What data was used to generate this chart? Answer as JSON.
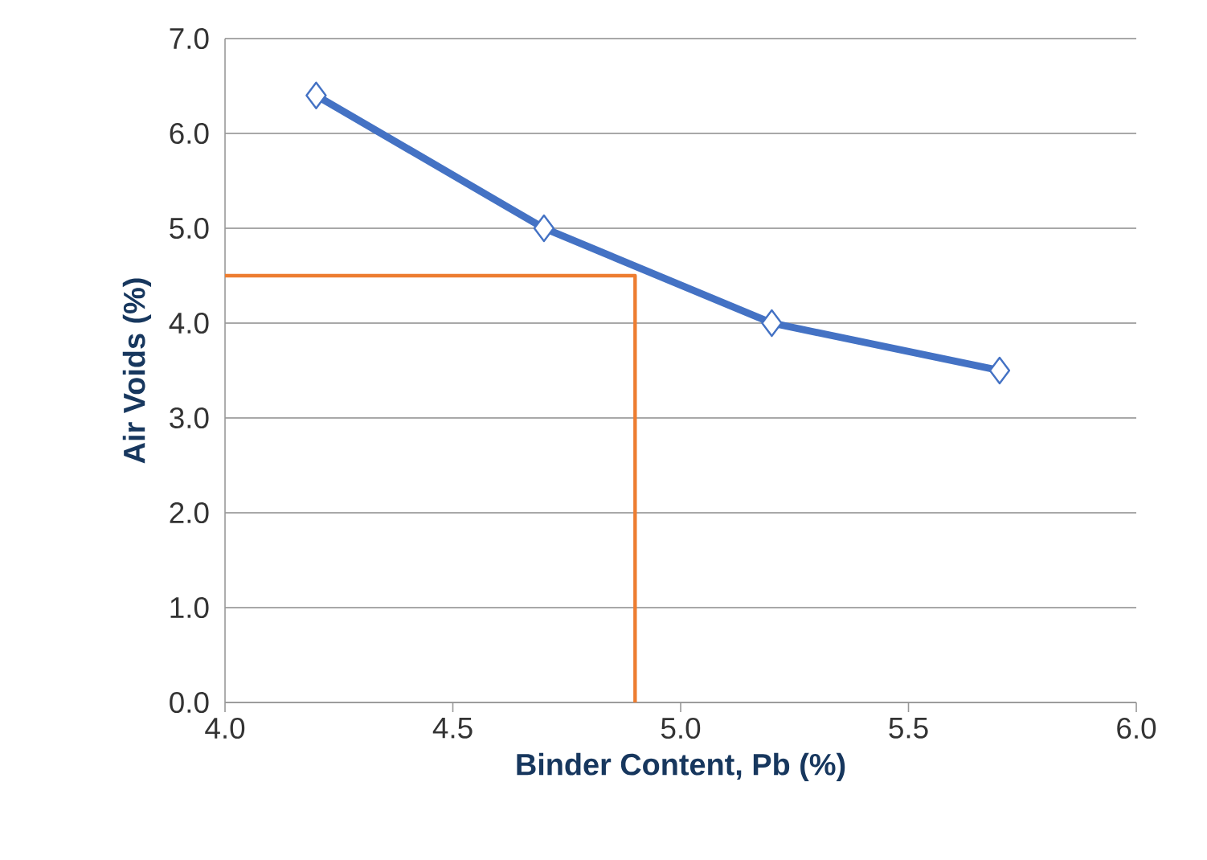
{
  "chart_data": {
    "type": "line",
    "xlabel": "Binder Content, Pb (%)",
    "ylabel": "Air Voids (%)",
    "xlim": [
      4.0,
      6.0
    ],
    "ylim": [
      0.0,
      7.0
    ],
    "xticks": [
      {
        "value": 4.0,
        "label": "4.0"
      },
      {
        "value": 4.5,
        "label": "4.5"
      },
      {
        "value": 5.0,
        "label": "5.0"
      },
      {
        "value": 5.5,
        "label": "5.5"
      },
      {
        "value": 6.0,
        "label": "6.0"
      }
    ],
    "yticks": [
      {
        "value": 0,
        "label": "0.0"
      },
      {
        "value": 1,
        "label": "1.0"
      },
      {
        "value": 2,
        "label": "2.0"
      },
      {
        "value": 3,
        "label": "3.0"
      },
      {
        "value": 4,
        "label": "4.0"
      },
      {
        "value": 5,
        "label": "5.0"
      },
      {
        "value": 6,
        "label": "6.0"
      },
      {
        "value": 7,
        "label": "7.0"
      }
    ],
    "grid": "y",
    "series": [
      {
        "color": "#4472c4",
        "x": [
          4.2,
          4.7,
          5.2,
          5.7
        ],
        "values": [
          6.4,
          5.0,
          4.0,
          3.5
        ],
        "marker": "diamond",
        "line_style": "solid"
      },
      {
        "type": "line",
        "color": "#ed7d31",
        "x": [
          4.0,
          4.9,
          4.9
        ],
        "values": [
          4.5,
          4.5,
          0.0
        ],
        "marker": "none",
        "line_style": "solid"
      }
    ]
  }
}
